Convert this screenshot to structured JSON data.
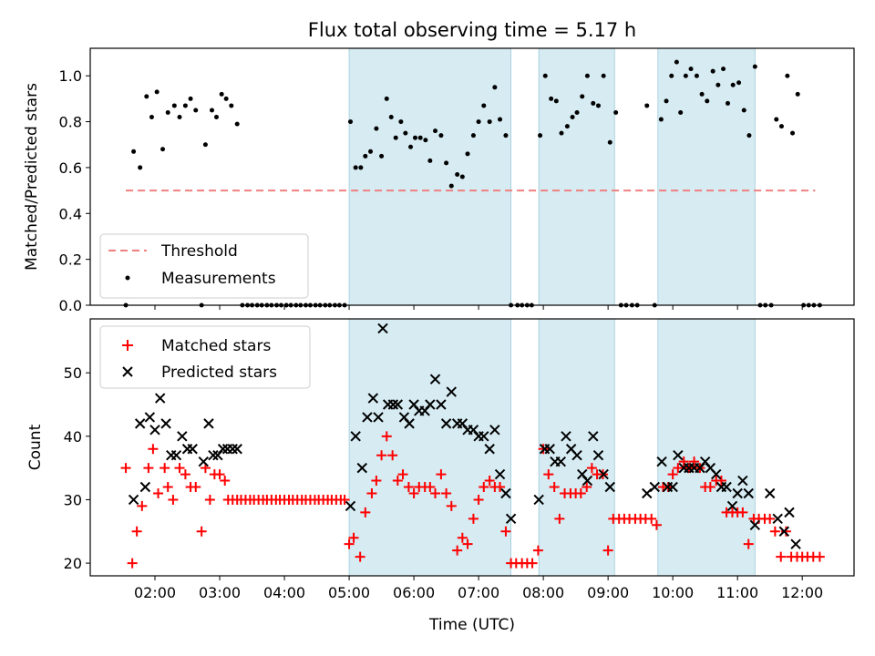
{
  "chart_data": [
    {
      "type": "scatter",
      "title": "Flux total observing time = 5.17 h",
      "xlabel": "",
      "ylabel": "Matched/Predicted stars",
      "xlim": [
        1.0,
        12.8
      ],
      "ylim": [
        0.0,
        1.12
      ],
      "x_unit": "hours UTC",
      "yticks": [
        0.0,
        0.2,
        0.4,
        0.6,
        0.8,
        1.0
      ],
      "ytick_labels": [
        "0.0",
        "0.2",
        "0.4",
        "0.6",
        "0.8",
        "1.0"
      ],
      "shaded_intervals": [
        [
          5.0,
          7.5
        ],
        [
          7.93,
          9.1
        ],
        [
          9.77,
          11.27
        ]
      ],
      "legend": {
        "position": "lower-left",
        "entries": [
          "Threshold",
          "Measurements"
        ]
      },
      "threshold": {
        "name": "Threshold",
        "y": 0.5,
        "x_range": [
          1.55,
          12.2
        ],
        "color": "#f08080"
      },
      "series": [
        {
          "name": "Measurements",
          "marker": "dot",
          "color": "#000000",
          "x": [
            1.55,
            1.67,
            1.77,
            1.87,
            1.95,
            2.03,
            2.12,
            2.2,
            2.3,
            2.38,
            2.47,
            2.55,
            2.63,
            2.72,
            2.78,
            2.88,
            2.95,
            3.03,
            3.1,
            3.18,
            3.27,
            3.35,
            3.43,
            3.5,
            3.58,
            3.65,
            3.73,
            3.8,
            3.88,
            3.95,
            4.03,
            4.1,
            4.18,
            4.25,
            4.33,
            4.4,
            4.48,
            4.55,
            4.63,
            4.7,
            4.78,
            4.85,
            4.93,
            5.02,
            5.1,
            5.18,
            5.25,
            5.33,
            5.42,
            5.5,
            5.58,
            5.65,
            5.72,
            5.8,
            5.87,
            5.95,
            6.02,
            6.1,
            6.18,
            6.25,
            6.33,
            6.42,
            6.5,
            6.58,
            6.67,
            6.75,
            6.83,
            6.92,
            7.0,
            7.08,
            7.17,
            7.25,
            7.33,
            7.42,
            7.5,
            7.6,
            7.67,
            7.75,
            7.82,
            7.95,
            8.03,
            8.12,
            8.2,
            8.28,
            8.37,
            8.45,
            8.52,
            8.6,
            8.68,
            8.77,
            8.85,
            8.93,
            9.03,
            9.12,
            9.2,
            9.28,
            9.37,
            9.45,
            9.6,
            9.72,
            9.82,
            9.9,
            9.98,
            10.06,
            10.12,
            10.2,
            10.28,
            10.37,
            10.45,
            10.53,
            10.62,
            10.7,
            10.78,
            10.85,
            10.93,
            11.02,
            11.1,
            11.18,
            11.27,
            11.35,
            11.43,
            11.52,
            11.6,
            11.68,
            11.77,
            11.85,
            11.93,
            12.02,
            12.1,
            12.18,
            12.27
          ],
          "y": [
            0.0,
            0.67,
            0.6,
            0.91,
            0.82,
            0.93,
            0.68,
            0.84,
            0.87,
            0.82,
            0.87,
            0.9,
            0.85,
            0.0,
            0.7,
            0.85,
            0.82,
            0.92,
            0.9,
            0.87,
            0.79,
            0.0,
            0.0,
            0.0,
            0.0,
            0.0,
            0.0,
            0.0,
            0.0,
            0.0,
            0.0,
            0.0,
            0.0,
            0.0,
            0.0,
            0.0,
            0.0,
            0.0,
            0.0,
            0.0,
            0.0,
            0.0,
            0.0,
            0.8,
            0.6,
            0.6,
            0.65,
            0.67,
            0.77,
            0.65,
            0.9,
            0.82,
            0.73,
            0.8,
            0.75,
            0.69,
            0.73,
            0.73,
            0.72,
            0.63,
            0.76,
            0.74,
            0.62,
            0.52,
            0.57,
            0.56,
            0.66,
            0.74,
            0.8,
            0.87,
            0.8,
            0.95,
            0.81,
            0.74,
            0.0,
            0.0,
            0.0,
            0.0,
            0.0,
            0.74,
            1.0,
            0.9,
            0.89,
            0.75,
            0.78,
            0.82,
            0.84,
            0.91,
            1.0,
            0.88,
            0.87,
            1.0,
            0.71,
            0.84,
            0.0,
            0.0,
            0.0,
            0.0,
            0.87,
            0.0,
            0.81,
            0.89,
            1.0,
            1.06,
            0.84,
            1.0,
            1.03,
            1.0,
            0.92,
            0.89,
            1.02,
            0.96,
            1.03,
            0.88,
            0.96,
            0.97,
            0.85,
            0.74,
            1.04,
            0.0,
            0.0,
            0.0,
            0.81,
            0.78,
            1.0,
            0.75,
            0.92,
            0.0,
            0.0,
            0.0,
            0.0
          ]
        }
      ]
    },
    {
      "type": "scatter",
      "title": "",
      "xlabel": "Time (UTC)",
      "ylabel": "Count",
      "xlim": [
        1.0,
        12.8
      ],
      "ylim": [
        18.0,
        58.5
      ],
      "x_unit": "hours UTC",
      "xticks": [
        2,
        3,
        4,
        5,
        6,
        7,
        8,
        9,
        10,
        11,
        12
      ],
      "xtick_labels": [
        "02:00",
        "03:00",
        "04:00",
        "05:00",
        "06:00",
        "07:00",
        "08:00",
        "09:00",
        "10:00",
        "11:00",
        "12:00"
      ],
      "yticks": [
        20,
        30,
        40,
        50
      ],
      "ytick_labels": [
        "20",
        "30",
        "40",
        "50"
      ],
      "shaded_intervals": [
        [
          5.0,
          7.5
        ],
        [
          7.93,
          9.1
        ],
        [
          9.77,
          11.27
        ]
      ],
      "legend": {
        "position": "upper-left",
        "entries": [
          "Matched stars",
          "Predicted stars"
        ]
      },
      "series": [
        {
          "name": "Matched stars",
          "marker": "plus",
          "color": "#ff0000",
          "x": [
            1.55,
            1.65,
            1.72,
            1.8,
            1.9,
            1.97,
            2.05,
            2.15,
            2.2,
            2.28,
            2.38,
            2.47,
            2.55,
            2.63,
            2.72,
            2.78,
            2.85,
            2.92,
            3.0,
            3.08,
            3.13,
            3.2,
            3.27,
            3.33,
            3.4,
            3.47,
            3.53,
            3.6,
            3.67,
            3.73,
            3.8,
            3.87,
            3.93,
            4.0,
            4.07,
            4.13,
            4.2,
            4.27,
            4.33,
            4.4,
            4.47,
            4.53,
            4.6,
            4.67,
            4.73,
            4.8,
            4.87,
            4.93,
            5.0,
            5.07,
            5.17,
            5.25,
            5.35,
            5.42,
            5.5,
            5.58,
            5.67,
            5.75,
            5.83,
            5.92,
            6.0,
            6.08,
            6.17,
            6.25,
            6.33,
            6.42,
            6.5,
            6.58,
            6.67,
            6.75,
            6.83,
            6.92,
            7.0,
            7.08,
            7.17,
            7.25,
            7.33,
            7.42,
            7.5,
            7.58,
            7.67,
            7.75,
            7.83,
            7.92,
            8.0,
            8.08,
            8.17,
            8.25,
            8.33,
            8.42,
            8.5,
            8.58,
            8.67,
            8.75,
            8.83,
            8.92,
            9.0,
            9.08,
            9.17,
            9.25,
            9.33,
            9.42,
            9.5,
            9.58,
            9.67,
            9.75,
            9.85,
            9.93,
            10.0,
            10.08,
            10.17,
            10.25,
            10.33,
            10.42,
            10.5,
            10.58,
            10.67,
            10.75,
            10.83,
            10.92,
            11.0,
            11.08,
            11.17,
            11.25,
            11.33,
            11.42,
            11.5,
            11.58,
            11.67,
            11.75,
            11.83,
            11.92,
            12.0,
            12.08,
            12.17,
            12.27
          ],
          "y": [
            35,
            20,
            25,
            29,
            35,
            38,
            31,
            35,
            32,
            30,
            35,
            34,
            32,
            32,
            25,
            35,
            30,
            34,
            34,
            33,
            30,
            30,
            30,
            30,
            30,
            30,
            30,
            30,
            30,
            30,
            30,
            30,
            30,
            30,
            30,
            30,
            30,
            30,
            30,
            30,
            30,
            30,
            30,
            30,
            30,
            30,
            30,
            30,
            23,
            24,
            21,
            28,
            31,
            33,
            37,
            40,
            37,
            33,
            34,
            32,
            31,
            32,
            32,
            32,
            31,
            34,
            31,
            29,
            22,
            24,
            23,
            27,
            30,
            32,
            33,
            32,
            32,
            25,
            20,
            20,
            20,
            20,
            20,
            22,
            38,
            34,
            32,
            27,
            31,
            31,
            31,
            31,
            32,
            35,
            34,
            34,
            22,
            27,
            27,
            27,
            27,
            27,
            27,
            27,
            27,
            26,
            32,
            32,
            34,
            35,
            36,
            35,
            36,
            35,
            32,
            32,
            33,
            33,
            28,
            28,
            28,
            28,
            23,
            27,
            27,
            27,
            27,
            25,
            21,
            25,
            21,
            21,
            21,
            21,
            21,
            21
          ]
        },
        {
          "name": "Predicted stars",
          "marker": "x",
          "color": "#000000",
          "x": [
            1.67,
            1.77,
            1.85,
            1.92,
            2.0,
            2.08,
            2.17,
            2.25,
            2.33,
            2.42,
            2.5,
            2.58,
            2.75,
            2.83,
            2.9,
            2.97,
            3.05,
            3.12,
            3.2,
            3.27,
            5.02,
            5.1,
            5.2,
            5.28,
            5.37,
            5.45,
            5.52,
            5.6,
            5.68,
            5.75,
            5.85,
            5.93,
            6.0,
            6.08,
            6.17,
            6.25,
            6.33,
            6.42,
            6.5,
            6.58,
            6.67,
            6.75,
            6.83,
            6.92,
            7.0,
            7.08,
            7.17,
            7.25,
            7.33,
            7.42,
            7.5,
            7.93,
            8.02,
            8.1,
            8.18,
            8.27,
            8.35,
            8.43,
            8.52,
            8.6,
            8.68,
            8.77,
            8.85,
            8.93,
            9.03,
            9.6,
            9.72,
            9.83,
            9.92,
            10.0,
            10.08,
            10.17,
            10.25,
            10.33,
            10.42,
            10.5,
            10.58,
            10.67,
            10.75,
            10.83,
            10.92,
            11.0,
            11.08,
            11.17,
            11.27,
            11.5,
            11.62,
            11.72,
            11.8,
            11.9
          ],
          "y": [
            30,
            42,
            32,
            43,
            41,
            46,
            42,
            37,
            37,
            40,
            38,
            38,
            36,
            42,
            37,
            37,
            38,
            38,
            38,
            38,
            29,
            40,
            35,
            43,
            46,
            43,
            57,
            45,
            45,
            45,
            43,
            42,
            45,
            44,
            44,
            45,
            49,
            45,
            42,
            47,
            42,
            42,
            41,
            41,
            40,
            40,
            38,
            41,
            34,
            31,
            27,
            30,
            38,
            38,
            36,
            36,
            40,
            38,
            37,
            34,
            33,
            40,
            37,
            34,
            32,
            31,
            32,
            36,
            32,
            32,
            37,
            35,
            35,
            35,
            35,
            36,
            35,
            34,
            32,
            32,
            29,
            31,
            33,
            31,
            26,
            31,
            27,
            25,
            28,
            23
          ]
        }
      ]
    }
  ]
}
